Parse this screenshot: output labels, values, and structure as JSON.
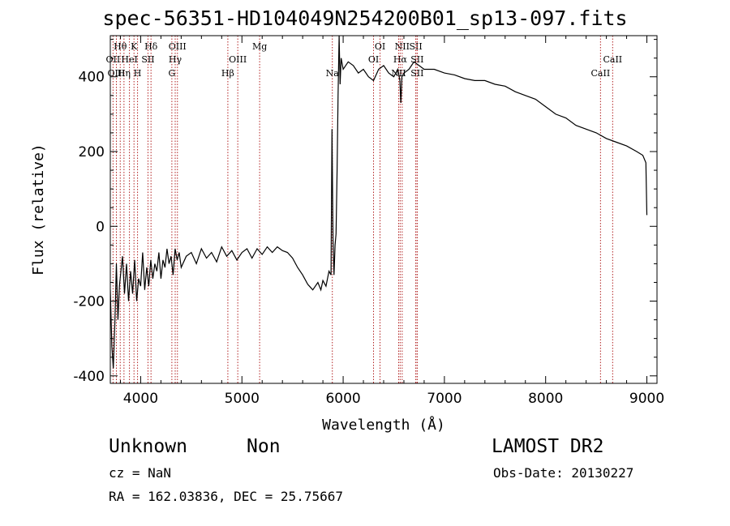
{
  "chart_data": {
    "type": "line",
    "title": "spec-56351-HD104049N254200B01_sp13-097.fits",
    "xlabel": "Wavelength (Å)",
    "ylabel": "Flux (relative)",
    "xlim": [
      3700,
      9100
    ],
    "ylim": [
      -420,
      510
    ],
    "x_ticks": [
      4000,
      5000,
      6000,
      7000,
      8000,
      9000
    ],
    "y_ticks": [
      -400,
      -200,
      0,
      200,
      400
    ],
    "grid": false,
    "spectral_lines": [
      {
        "label": "Hθ",
        "wavelength": 3798,
        "row": 1
      },
      {
        "label": "OII",
        "wavelength": 3727,
        "row": 2
      },
      {
        "label": "OIII",
        "wavelength": 3760,
        "row": 3
      },
      {
        "label": "K",
        "wavelength": 3934,
        "row": 1
      },
      {
        "label": "HeI",
        "wavelength": 3889,
        "row": 2
      },
      {
        "label": "Hη",
        "wavelength": 3835,
        "row": 3
      },
      {
        "label": "H",
        "wavelength": 3969,
        "row": 3
      },
      {
        "label": "Hδ",
        "wavelength": 4102,
        "row": 1
      },
      {
        "label": "SII",
        "wavelength": 4072,
        "row": 2
      },
      {
        "label": "OIII",
        "wavelength": 4363,
        "row": 1
      },
      {
        "label": "Hγ",
        "wavelength": 4341,
        "row": 2
      },
      {
        "label": "G",
        "wavelength": 4308,
        "row": 3
      },
      {
        "label": "OIII",
        "wavelength": 4959,
        "row": 2
      },
      {
        "label": "Hβ",
        "wavelength": 4861,
        "row": 3
      },
      {
        "label": "Mg",
        "wavelength": 5175,
        "row": 1
      },
      {
        "label": "Na",
        "wavelength": 5893,
        "row": 3
      },
      {
        "label": "OI",
        "wavelength": 6364,
        "row": 1
      },
      {
        "label": "OI",
        "wavelength": 6300,
        "row": 2
      },
      {
        "label": "NII",
        "wavelength": 6583,
        "row": 1
      },
      {
        "label": "Hα",
        "wavelength": 6563,
        "row": 2
      },
      {
        "label": "NII",
        "wavelength": 6548,
        "row": 3
      },
      {
        "label": "SII",
        "wavelength": 6717,
        "row": 1
      },
      {
        "label": "SII",
        "wavelength": 6731,
        "row": 2
      },
      {
        "label": "SII",
        "wavelength": 6731,
        "row": 3
      },
      {
        "label": "CaII",
        "wavelength": 8662,
        "row": 2
      },
      {
        "label": "CaII",
        "wavelength": 8542,
        "row": 3
      }
    ],
    "series": [
      {
        "x": [
          3700,
          3715,
          3730,
          3745,
          3760,
          3775,
          3790,
          3805,
          3820,
          3840,
          3860,
          3880,
          3900,
          3920,
          3940,
          3960,
          3980,
          4000,
          4020,
          4040,
          4060,
          4080,
          4100,
          4120,
          4140,
          4160,
          4180,
          4200,
          4220,
          4240,
          4260,
          4280,
          4300,
          4320,
          4340,
          4360,
          4380,
          4400,
          4450,
          4500,
          4550,
          4600,
          4650,
          4700,
          4750,
          4800,
          4850,
          4900,
          4950,
          5000,
          5050,
          5100,
          5150,
          5200,
          5250,
          5300,
          5350,
          5400,
          5450,
          5500,
          5550,
          5600,
          5650,
          5700,
          5750,
          5780,
          5800,
          5830,
          5860,
          5880,
          5890,
          5900,
          5910,
          5920,
          5930,
          5940,
          5950,
          5960,
          5970,
          5980,
          6000,
          6050,
          6100,
          6150,
          6200,
          6250,
          6300,
          6350,
          6400,
          6450,
          6500,
          6540,
          6560,
          6570,
          6580,
          6600,
          6650,
          6700,
          6750,
          6800,
          6900,
          7000,
          7100,
          7200,
          7300,
          7400,
          7500,
          7600,
          7700,
          7800,
          7900,
          8000,
          8100,
          8200,
          8300,
          8400,
          8500,
          8600,
          8700,
          8800,
          8900,
          8960,
          8990,
          9000
        ],
        "y": [
          -170,
          -320,
          -380,
          -260,
          -100,
          -250,
          -160,
          -120,
          -80,
          -180,
          -100,
          -200,
          -120,
          -180,
          -90,
          -200,
          -140,
          -160,
          -70,
          -170,
          -110,
          -160,
          -90,
          -140,
          -100,
          -120,
          -70,
          -140,
          -90,
          -110,
          -60,
          -100,
          -80,
          -130,
          -60,
          -90,
          -70,
          -110,
          -80,
          -70,
          -100,
          -60,
          -85,
          -70,
          -95,
          -55,
          -80,
          -65,
          -90,
          -70,
          -60,
          -85,
          -60,
          -75,
          -55,
          -70,
          -55,
          -65,
          -70,
          -85,
          -110,
          -130,
          -155,
          -170,
          -150,
          -170,
          -145,
          -160,
          -120,
          -130,
          260,
          -40,
          -130,
          -50,
          -20,
          150,
          350,
          510,
          380,
          450,
          420,
          440,
          430,
          410,
          420,
          400,
          390,
          420,
          430,
          410,
          400,
          420,
          390,
          330,
          400,
          410,
          420,
          440,
          430,
          420,
          420,
          410,
          405,
          395,
          390,
          390,
          380,
          375,
          360,
          350,
          340,
          320,
          300,
          290,
          270,
          260,
          250,
          235,
          225,
          215,
          200,
          190,
          170,
          30
        ]
      }
    ]
  },
  "footer": {
    "class_label": "Unknown",
    "subclass_label": "Non",
    "survey": "LAMOST DR2",
    "cz": "cz = NaN",
    "obs_date": "Obs-Date: 20130227",
    "radec": "RA = 162.03836, DEC =  25.75667"
  }
}
